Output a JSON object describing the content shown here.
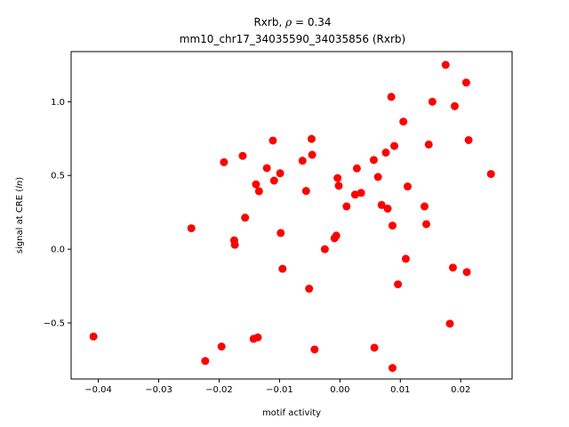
{
  "chart_data": {
    "type": "scatter",
    "title_line1_prefix": "Rxrb, ",
    "title_line1_rho": "ρ",
    "title_line1_suffix": " = 0.34",
    "title_line2": "mm10_chr17_34035590_34035856 (Rxrb)",
    "xlabel": "motif activity",
    "ylabel_prefix": "signal at CRE (",
    "ylabel_italic": "ln",
    "ylabel_suffix": ")",
    "xlim": [
      -0.0445,
      0.0285
    ],
    "ylim": [
      -0.88,
      1.34
    ],
    "xticks": [
      -0.04,
      -0.03,
      -0.02,
      -0.01,
      0.0,
      0.01,
      0.02
    ],
    "xtick_labels": [
      "−0.04",
      "−0.03",
      "−0.02",
      "−0.01",
      "0.00",
      "0.01",
      "0.02"
    ],
    "yticks": [
      -0.5,
      0.0,
      0.5,
      1.0
    ],
    "ytick_labels": [
      "−0.5",
      "0.0",
      "0.5",
      "1.0"
    ],
    "grid": false,
    "marker_color": "#ff0000",
    "points": [
      {
        "x": -0.0408,
        "y": -0.592
      },
      {
        "x": -0.0246,
        "y": 0.142
      },
      {
        "x": -0.0223,
        "y": -0.758
      },
      {
        "x": -0.0196,
        "y": -0.66
      },
      {
        "x": -0.0192,
        "y": 0.59
      },
      {
        "x": -0.0175,
        "y": 0.06
      },
      {
        "x": -0.0174,
        "y": 0.03
      },
      {
        "x": -0.0161,
        "y": 0.633
      },
      {
        "x": -0.0157,
        "y": 0.214
      },
      {
        "x": -0.0143,
        "y": -0.608
      },
      {
        "x": -0.0139,
        "y": 0.44
      },
      {
        "x": -0.0136,
        "y": -0.598
      },
      {
        "x": -0.0134,
        "y": 0.393
      },
      {
        "x": -0.0121,
        "y": 0.55
      },
      {
        "x": -0.0111,
        "y": 0.737
      },
      {
        "x": -0.0109,
        "y": 0.465
      },
      {
        "x": -0.0099,
        "y": 0.515
      },
      {
        "x": -0.0098,
        "y": 0.11
      },
      {
        "x": -0.0095,
        "y": -0.133
      },
      {
        "x": -0.0062,
        "y": 0.6
      },
      {
        "x": -0.0056,
        "y": 0.395
      },
      {
        "x": -0.0051,
        "y": -0.268
      },
      {
        "x": -0.0047,
        "y": 0.748
      },
      {
        "x": -0.0046,
        "y": 0.64
      },
      {
        "x": -0.0042,
        "y": -0.68
      },
      {
        "x": -0.0025,
        "y": 0.0
      },
      {
        "x": -0.0009,
        "y": 0.074
      },
      {
        "x": -0.0006,
        "y": 0.092
      },
      {
        "x": -0.0004,
        "y": 0.482
      },
      {
        "x": -0.0002,
        "y": 0.43
      },
      {
        "x": 0.0011,
        "y": 0.29
      },
      {
        "x": 0.0025,
        "y": 0.37
      },
      {
        "x": 0.0028,
        "y": 0.548
      },
      {
        "x": 0.0035,
        "y": 0.382
      },
      {
        "x": 0.0056,
        "y": 0.605
      },
      {
        "x": 0.0057,
        "y": -0.668
      },
      {
        "x": 0.0063,
        "y": 0.49
      },
      {
        "x": 0.0069,
        "y": 0.3
      },
      {
        "x": 0.0076,
        "y": 0.655
      },
      {
        "x": 0.0079,
        "y": 0.275
      },
      {
        "x": 0.0085,
        "y": 1.033
      },
      {
        "x": 0.0087,
        "y": -0.805
      },
      {
        "x": 0.0087,
        "y": 0.16
      },
      {
        "x": 0.009,
        "y": 0.7
      },
      {
        "x": 0.0096,
        "y": -0.238
      },
      {
        "x": 0.0105,
        "y": 0.865
      },
      {
        "x": 0.0109,
        "y": -0.065
      },
      {
        "x": 0.0112,
        "y": 0.425
      },
      {
        "x": 0.014,
        "y": 0.29
      },
      {
        "x": 0.0143,
        "y": 0.17
      },
      {
        "x": 0.0147,
        "y": 0.71
      },
      {
        "x": 0.0153,
        "y": 1.0
      },
      {
        "x": 0.0175,
        "y": 1.25
      },
      {
        "x": 0.0182,
        "y": -0.505
      },
      {
        "x": 0.0187,
        "y": -0.125
      },
      {
        "x": 0.019,
        "y": 0.97
      },
      {
        "x": 0.0209,
        "y": 1.13
      },
      {
        "x": 0.021,
        "y": -0.155
      },
      {
        "x": 0.0213,
        "y": 0.74
      },
      {
        "x": 0.025,
        "y": 0.51
      }
    ]
  }
}
